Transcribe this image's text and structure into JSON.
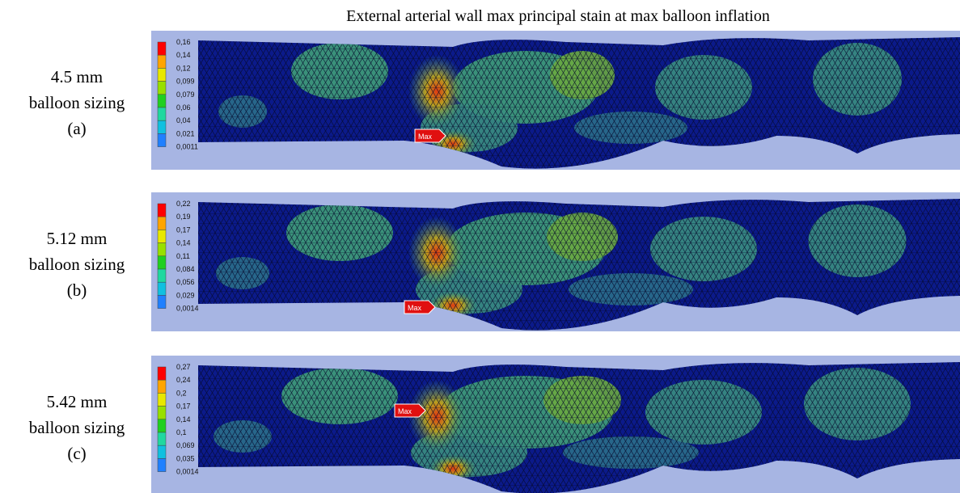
{
  "title": "External arterial wall max principal stain at max balloon inflation",
  "panels": [
    {
      "label": [
        "4.5 mm",
        "balloon sizing",
        "(a)"
      ],
      "legend": [
        "0,16",
        "0,14",
        "0,12",
        "0,099",
        "0,079",
        "0,06",
        "0,04",
        "0,021",
        "0,0011"
      ],
      "marker": "Max"
    },
    {
      "label": [
        "5.12 mm",
        "balloon sizing",
        "(b)"
      ],
      "legend": [
        "0,22",
        "0,19",
        "0,17",
        "0,14",
        "0,11",
        "0,084",
        "0,056",
        "0,029",
        "0,0014"
      ],
      "marker": "Max"
    },
    {
      "label": [
        "5.42 mm",
        "balloon sizing",
        "(c)"
      ],
      "legend": [
        "0,27",
        "0,24",
        "0,2",
        "0,17",
        "0,14",
        "0,1",
        "0,069",
        "0,035",
        "0,0014"
      ],
      "marker": "Max"
    }
  ]
}
